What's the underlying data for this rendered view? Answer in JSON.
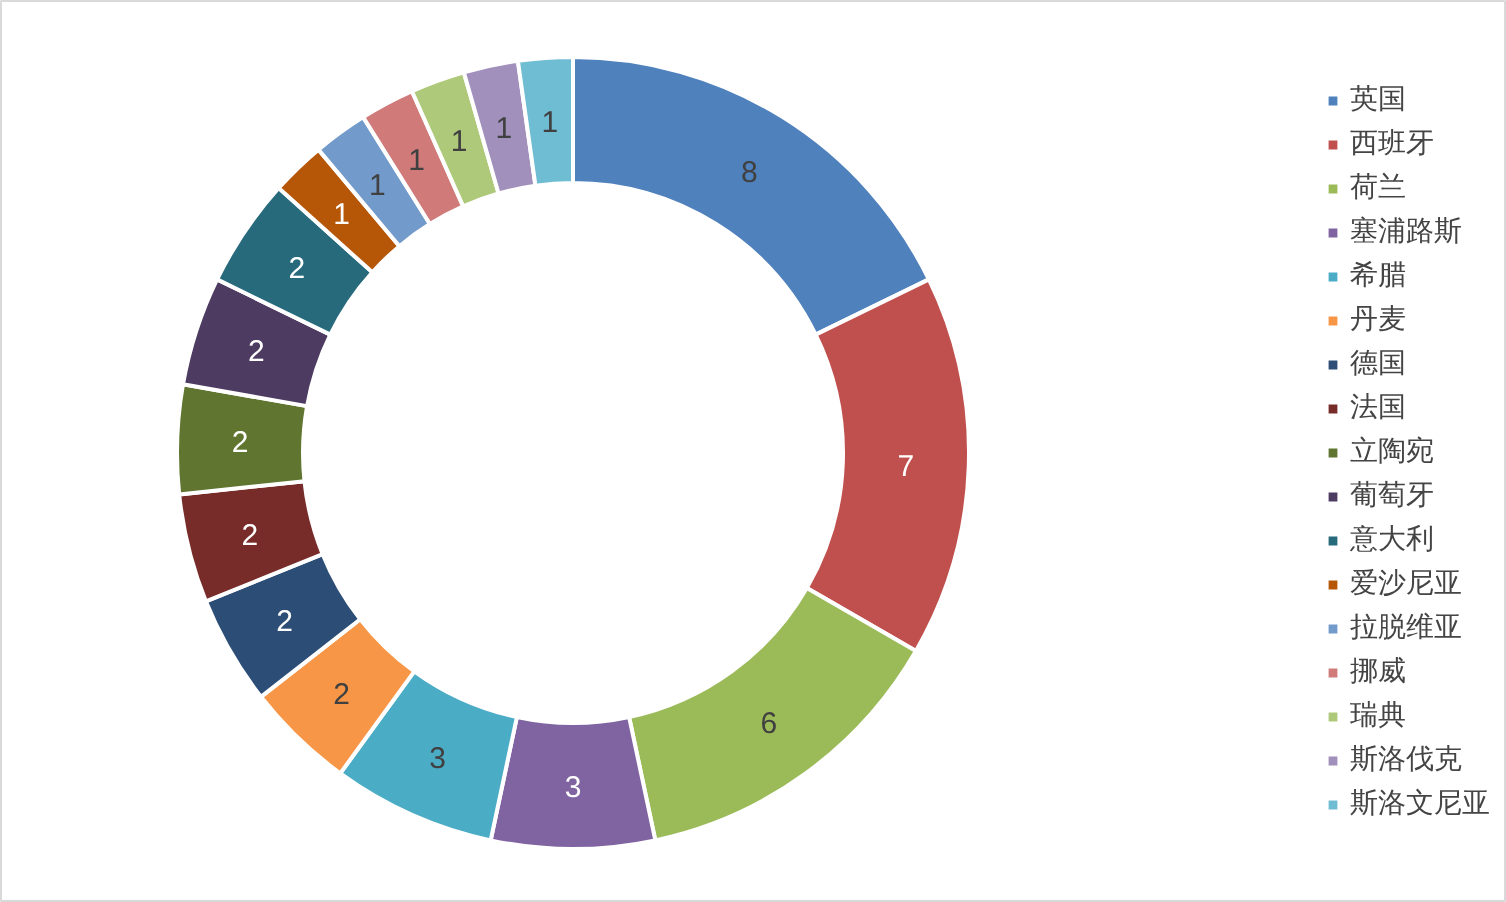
{
  "chart_data": {
    "type": "donut",
    "categories": [
      "英国",
      "西班牙",
      "荷兰",
      "塞浦路斯",
      "希腊",
      "丹麦",
      "德国",
      "法国",
      "立陶宛",
      "葡萄牙",
      "意大利",
      "爱沙尼亚",
      "拉脱维亚",
      "挪威",
      "瑞典",
      "斯洛伐克",
      "斯洛文尼亚"
    ],
    "values": [
      8,
      7,
      6,
      3,
      3,
      2,
      2,
      2,
      2,
      2,
      2,
      1,
      1,
      1,
      1,
      1,
      1
    ],
    "colors": [
      "#4f81bd",
      "#c0504d",
      "#9bbb59",
      "#8064a2",
      "#4bacc6",
      "#f79646",
      "#2c4d75",
      "#772c2a",
      "#5f7530",
      "#4d3b62",
      "#276a7c",
      "#b65708",
      "#729aca",
      "#d07b7a",
      "#afc97a",
      "#a18fbc",
      "#6fbdd3"
    ],
    "data_labels": true,
    "legend": "right"
  }
}
